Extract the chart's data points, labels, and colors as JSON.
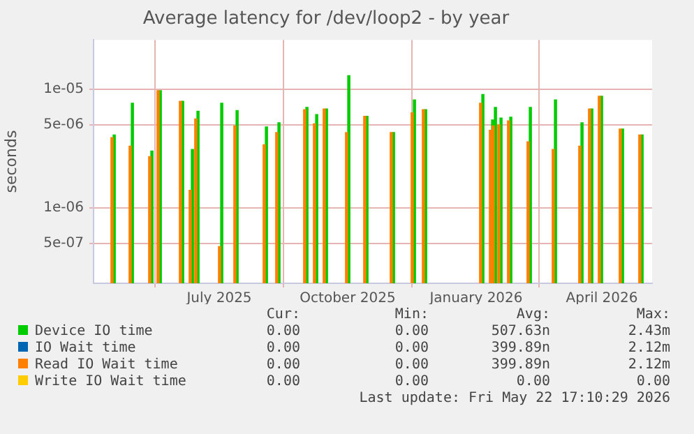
{
  "chart_data": {
    "type": "bar",
    "title": "Average latency for /dev/loop2 - by year",
    "ylabel": "seconds",
    "x": [
      "2025-05-01",
      "2025-05-14",
      "2025-05-28",
      "2025-06-03",
      "2025-06-19",
      "2025-06-26",
      "2025-06-30",
      "2025-07-17",
      "2025-07-28",
      "2025-08-18",
      "2025-08-27",
      "2025-09-16",
      "2025-09-23",
      "2025-09-30",
      "2025-10-16",
      "2025-10-29",
      "2025-11-17",
      "2025-12-02",
      "2025-12-10",
      "2026-01-20",
      "2026-01-27",
      "2026-01-29",
      "2026-02-02",
      "2026-02-09",
      "2026-02-23",
      "2026-03-13",
      "2026-04-01",
      "2026-04-08",
      "2026-04-15",
      "2026-04-30",
      "2026-05-14"
    ],
    "series": [
      {
        "name": "Device IO time",
        "color": "#00cc00",
        "values": [
          4.1e-06,
          7.6e-06,
          3e-06,
          9.7e-06,
          7.9e-06,
          3.1e-06,
          6.5e-06,
          7.6e-06,
          6.6e-06,
          4.8e-06,
          5.2e-06,
          7e-06,
          6.1e-06,
          6.8e-06,
          1.3e-05,
          5.9e-06,
          4.3e-06,
          8.1e-06,
          6.7e-06,
          9e-06,
          5.5e-06,
          7e-06,
          5.7e-06,
          5.8e-06,
          7e-06,
          8.1e-06,
          5.2e-06,
          6.8e-06,
          8.7e-06,
          4.6e-06,
          4.1e-06
        ]
      },
      {
        "name": "IO Wait time",
        "color": "#0066b3",
        "values": [
          null,
          null,
          null,
          null,
          null,
          null,
          null,
          null,
          null,
          null,
          null,
          null,
          null,
          null,
          null,
          null,
          null,
          null,
          null,
          null,
          null,
          null,
          null,
          null,
          null,
          null,
          null,
          null,
          null,
          null,
          null
        ]
      },
      {
        "name": "Read IO Wait time",
        "color": "#ff8000",
        "values": [
          3.9e-06,
          3.3e-06,
          2.7e-06,
          9.7e-06,
          7.9e-06,
          1.4e-06,
          5.6e-06,
          4.7e-07,
          4.9e-06,
          3.4e-06,
          4.3e-06,
          6.7e-06,
          5.1e-06,
          6.8e-06,
          4.3e-06,
          5.9e-06,
          4.3e-06,
          6.3e-06,
          6.7e-06,
          7.6e-06,
          4.5e-06,
          4.9e-06,
          5e-06,
          5.4e-06,
          3.6e-06,
          3.1e-06,
          3.3e-06,
          6.8e-06,
          8.7e-06,
          4.6e-06,
          4.1e-06
        ]
      },
      {
        "name": "Write IO Wait time",
        "color": "#ffcc00",
        "values": [
          null,
          null,
          null,
          null,
          null,
          null,
          null,
          null,
          null,
          null,
          null,
          null,
          null,
          null,
          null,
          null,
          null,
          null,
          null,
          null,
          null,
          null,
          null,
          null,
          null,
          null,
          null,
          null,
          null,
          null,
          null
        ]
      }
    ],
    "xlim": [
      "2025-04-17",
      "2026-05-22"
    ],
    "xticks": [
      {
        "value": "2025-07-16",
        "label": "July 2025"
      },
      {
        "value": "2025-10-16",
        "label": "October 2025"
      },
      {
        "value": "2026-01-16",
        "label": "January 2026"
      },
      {
        "value": "2026-04-16",
        "label": "April 2026"
      }
    ],
    "ylim": [
      2.3e-07,
      2.6e-05
    ],
    "yticks": [
      {
        "value": 5e-07,
        "label": "5e-07"
      },
      {
        "value": 1e-06,
        "label": "1e-06"
      },
      {
        "value": 5e-06,
        "label": "5e-06"
      },
      {
        "value": 1e-05,
        "label": "1e-05"
      }
    ],
    "log": "y",
    "grid": true,
    "legend": "bottom",
    "annotations": [
      "Cur:",
      "Min:",
      "Avg:",
      "Max:",
      "0.00",
      "0.00",
      "507.63n",
      "2.43m",
      "0.00",
      "0.00",
      "399.89n",
      "2.12m",
      "0.00",
      "0.00",
      "399.89n",
      "2.12m",
      "0.00",
      "0.00",
      "0.00",
      "0.00",
      "Last update: Fri May 22 17:10:29 2026"
    ]
  }
}
